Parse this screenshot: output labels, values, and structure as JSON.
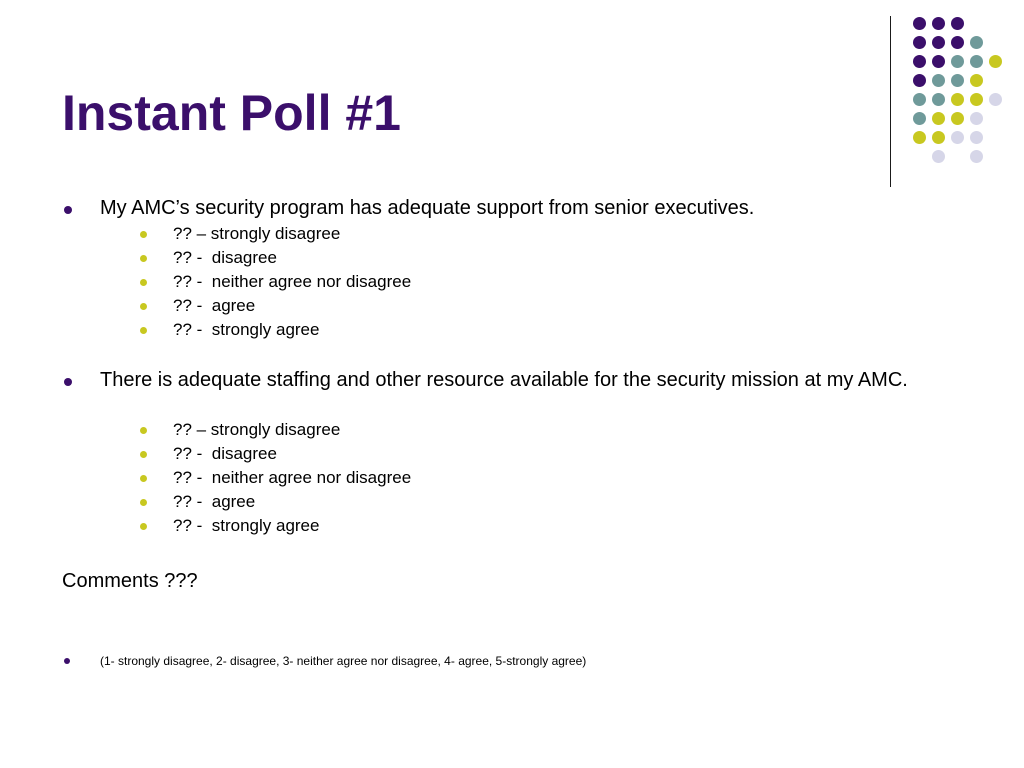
{
  "slide": {
    "title": "Instant Poll #1",
    "questions": [
      {
        "text": "My AMC’s security program  has adequate support from senior executives.",
        "options": [
          "?? – strongly disagree",
          "?? -  disagree",
          "?? -  neither agree nor disagree",
          "?? -  agree",
          "?? -  strongly agree"
        ]
      },
      {
        "text": "There is adequate staffing and other resource available for the security mission at my AMC.",
        "options": [
          "?? – strongly disagree",
          "?? -  disagree",
          "?? -  neither agree nor disagree",
          "?? -  agree",
          "?? -  strongly agree"
        ]
      }
    ],
    "comments": "Comments ???",
    "scale_note": "(1- strongly disagree, 2- disagree, 3- neither agree nor disagree, 4- agree, 5-strongly agree)"
  },
  "colors": {
    "title": "#3b0f6b",
    "purple": "#3b0f6b",
    "teal": "#6f9a9a",
    "yellow": "#c8c820",
    "lavender": "#d6d6e8"
  }
}
